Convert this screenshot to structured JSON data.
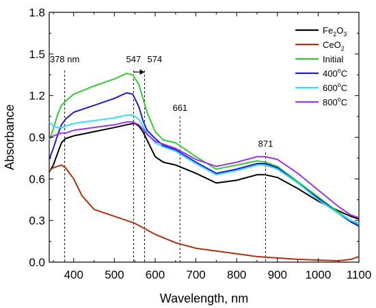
{
  "chart_data": {
    "type": "line",
    "title": "",
    "xlabel": "Wavelength, nm",
    "ylabel": "Absorbance",
    "xlim": [
      340,
      1100
    ],
    "ylim": [
      0.0,
      1.8
    ],
    "x_ticks": [
      400,
      500,
      600,
      700,
      800,
      900,
      1000,
      1100
    ],
    "y_ticks": [
      0.0,
      0.3,
      0.6,
      0.9,
      1.2,
      1.5,
      1.8
    ],
    "x_tick_labels": [
      "400",
      "500",
      "600",
      "700",
      "800",
      "900",
      "1000",
      "1100"
    ],
    "y_tick_labels": [
      "0.0",
      "0.3",
      "0.6",
      "0.9",
      "1.2",
      "1.5",
      "1.8"
    ],
    "grid": false,
    "legend_position": "top-right",
    "series": [
      {
        "name": "Fe2O3",
        "legend_main": "Fe",
        "legend_sub": "2",
        "legend_tail": "O",
        "legend_sub2": "3",
        "color": "#000000",
        "x": [
          340,
          350,
          360,
          370,
          380,
          400,
          450,
          500,
          530,
          550,
          560,
          570,
          580,
          600,
          620,
          650,
          700,
          750,
          800,
          850,
          870,
          900,
          950,
          1000,
          1050,
          1080,
          1100
        ],
        "y": [
          0.65,
          0.7,
          0.78,
          0.86,
          0.89,
          0.91,
          0.94,
          0.97,
          0.99,
          1.0,
          0.98,
          0.94,
          0.88,
          0.76,
          0.72,
          0.7,
          0.64,
          0.57,
          0.59,
          0.63,
          0.63,
          0.61,
          0.53,
          0.44,
          0.37,
          0.33,
          0.31
        ]
      },
      {
        "name": "CeO2",
        "legend_main": "CeO",
        "legend_sub": "2",
        "legend_tail": "",
        "legend_sub2": "",
        "color": "#b03010",
        "x": [
          340,
          350,
          360,
          370,
          380,
          400,
          420,
          450,
          500,
          550,
          600,
          650,
          700,
          750,
          800,
          850,
          900,
          950,
          1000,
          1050,
          1080,
          1100
        ],
        "y": [
          0.66,
          0.68,
          0.69,
          0.7,
          0.68,
          0.6,
          0.48,
          0.38,
          0.33,
          0.28,
          0.2,
          0.14,
          0.1,
          0.08,
          0.06,
          0.04,
          0.03,
          0.02,
          0.015,
          0.01,
          0.02,
          0.04
        ]
      },
      {
        "name": "Initial",
        "legend_main": "Initial",
        "legend_sub": "",
        "legend_tail": "",
        "legend_sub2": "",
        "color": "#33cc33",
        "x": [
          340,
          350,
          360,
          370,
          380,
          400,
          450,
          500,
          530,
          545,
          560,
          570,
          580,
          600,
          620,
          650,
          700,
          750,
          800,
          850,
          870,
          900,
          950,
          1000,
          1050,
          1080,
          1100
        ],
        "y": [
          0.88,
          0.96,
          1.06,
          1.13,
          1.16,
          1.21,
          1.27,
          1.32,
          1.36,
          1.35,
          1.28,
          1.18,
          1.08,
          0.94,
          0.88,
          0.86,
          0.76,
          0.67,
          0.7,
          0.73,
          0.72,
          0.69,
          0.58,
          0.47,
          0.36,
          0.3,
          0.27
        ]
      },
      {
        "name": "400°C",
        "legend_main": "400",
        "legend_sup": "o",
        "legend_after": "C",
        "color": "#1a1ad9",
        "x": [
          340,
          350,
          360,
          370,
          380,
          400,
          450,
          500,
          530,
          545,
          560,
          570,
          580,
          600,
          620,
          650,
          700,
          750,
          800,
          850,
          870,
          900,
          950,
          1000,
          1050,
          1080,
          1100
        ],
        "y": [
          0.74,
          0.82,
          0.91,
          0.99,
          1.03,
          1.08,
          1.13,
          1.18,
          1.22,
          1.21,
          1.12,
          1.02,
          0.95,
          0.89,
          0.84,
          0.81,
          0.72,
          0.64,
          0.67,
          0.71,
          0.71,
          0.68,
          0.57,
          0.46,
          0.35,
          0.29,
          0.26
        ]
      },
      {
        "name": "600°C",
        "legend_main": "600",
        "legend_sup": "o",
        "legend_after": "C",
        "color": "#33ddff",
        "x": [
          340,
          350,
          360,
          370,
          380,
          400,
          450,
          500,
          530,
          545,
          560,
          570,
          580,
          600,
          620,
          650,
          700,
          750,
          800,
          850,
          870,
          900,
          950,
          1000,
          1050,
          1080,
          1100
        ],
        "y": [
          1.01,
          0.98,
          0.97,
          0.97,
          0.98,
          1.0,
          1.02,
          1.04,
          1.06,
          1.06,
          1.03,
          0.98,
          0.93,
          0.86,
          0.83,
          0.8,
          0.71,
          0.63,
          0.66,
          0.7,
          0.7,
          0.67,
          0.57,
          0.45,
          0.35,
          0.3,
          0.28
        ]
      },
      {
        "name": "800°C",
        "legend_main": "800",
        "legend_sup": "o",
        "legend_after": "C",
        "color": "#9933ee",
        "x": [
          340,
          350,
          360,
          370,
          380,
          400,
          450,
          500,
          530,
          545,
          560,
          570,
          580,
          600,
          620,
          650,
          700,
          750,
          800,
          850,
          870,
          900,
          950,
          1000,
          1050,
          1080,
          1100
        ],
        "y": [
          0.89,
          0.91,
          0.92,
          0.93,
          0.93,
          0.95,
          0.97,
          0.99,
          1.01,
          1.01,
          0.99,
          0.96,
          0.92,
          0.87,
          0.85,
          0.82,
          0.74,
          0.69,
          0.72,
          0.76,
          0.76,
          0.74,
          0.64,
          0.52,
          0.4,
          0.34,
          0.32
        ]
      }
    ],
    "annotations": [
      {
        "label": "378 nm",
        "x": 378,
        "line_top": 1.38,
        "label_y": 1.44
      },
      {
        "label": "547",
        "x": 547,
        "line_top": 1.38,
        "label_y": 1.44
      },
      {
        "label": "574",
        "x": 574,
        "line_top": 1.38,
        "label_y": 1.44
      },
      {
        "label": "661",
        "x": 661,
        "line_top": 1.05,
        "label_y": 1.09
      },
      {
        "label": "871",
        "x": 871,
        "line_top": 0.79,
        "label_y": 0.83
      }
    ],
    "arrow": {
      "from_x": 547,
      "to_x": 574,
      "y": 1.37
    }
  }
}
